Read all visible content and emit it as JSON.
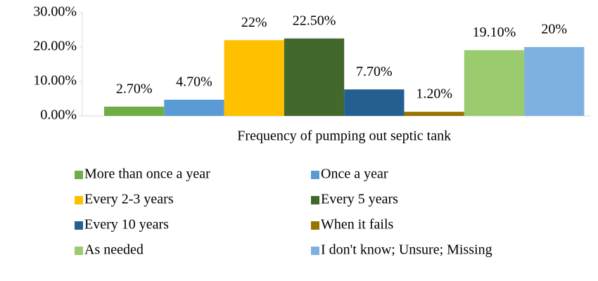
{
  "chart_data": {
    "type": "bar",
    "categories": [
      "Frequency of pumping out septic tank"
    ],
    "series": [
      {
        "name": "More than once a year",
        "color": "#70ad47",
        "values": [
          2.7
        ],
        "value_labels": [
          "2.70%"
        ]
      },
      {
        "name": "Once a year",
        "color": "#5b9bd5",
        "values": [
          4.7
        ],
        "value_labels": [
          "4.70%"
        ]
      },
      {
        "name": "Every 2-3 years",
        "color": "#ffc000",
        "values": [
          22
        ],
        "value_labels": [
          "22%"
        ]
      },
      {
        "name": "Every 5 years",
        "color": "#43682b",
        "values": [
          22.5
        ],
        "value_labels": [
          "22.50%"
        ]
      },
      {
        "name": "Every 10 years",
        "color": "#255e91",
        "values": [
          7.7
        ],
        "value_labels": [
          "7.70%"
        ]
      },
      {
        "name": "When it fails",
        "color": "#997300",
        "values": [
          1.2
        ],
        "value_labels": [
          "1.20%"
        ]
      },
      {
        "name": "As needed",
        "color": "#9bcb6f",
        "values": [
          19.1
        ],
        "value_labels": [
          "19.10%"
        ]
      },
      {
        "name": "I don't know; Unsure; Missing",
        "color": "#7fb1e0",
        "values": [
          20
        ],
        "value_labels": [
          "20%"
        ]
      }
    ],
    "ylim": [
      0,
      30
    ],
    "yticks": [
      {
        "value": 0,
        "label": "0.00%"
      },
      {
        "value": 10,
        "label": "10.00%"
      },
      {
        "value": 20,
        "label": "20.00%"
      },
      {
        "value": 30,
        "label": "30.00%"
      }
    ],
    "legend": "bottom"
  }
}
